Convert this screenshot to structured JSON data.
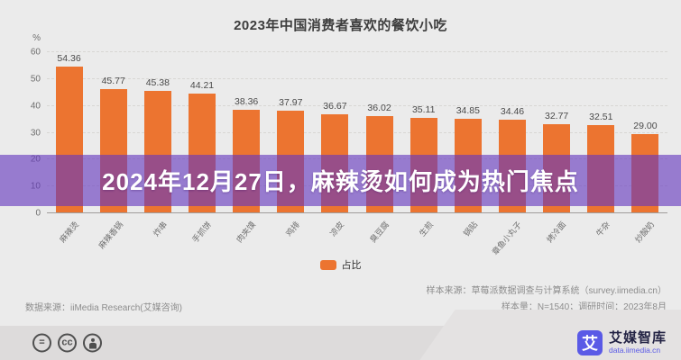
{
  "chart_data": {
    "type": "bar",
    "title": "2023年中国消费者喜欢的餐饮小吃",
    "categories": [
      "麻辣烫",
      "麻辣香锅",
      "炸串",
      "手抓饼",
      "肉夹馍",
      "鸡排",
      "凉皮",
      "臭豆腐",
      "生煎",
      "锅贴",
      "章鱼小丸子",
      "烤冷面",
      "牛杂",
      "炒酸奶"
    ],
    "values": [
      54.36,
      45.77,
      45.38,
      44.21,
      38.36,
      37.97,
      36.67,
      36.02,
      35.11,
      34.85,
      34.46,
      32.77,
      32.51,
      29.0
    ],
    "series_name": "占比",
    "y_unit": "%",
    "ylim": [
      0,
      60
    ],
    "yticks": [
      0,
      10,
      20,
      30,
      40,
      50,
      60
    ],
    "grid": "dashed-horizontal",
    "legend_position": "bottom",
    "bar_color": "#ec7430"
  },
  "banner": {
    "text": "2024年12月27日，麻辣烫如何成为热门焦点",
    "overlay_color": "#6437be"
  },
  "legend": {
    "label": "占比"
  },
  "source": {
    "left": "数据来源：iiMedia Research(艾媒咨询)",
    "right_line1": "样本来源：草莓派数据调查与计算系统（survey.iimedia.cn）",
    "right_line2": "样本量：N=1540；调研时间：2023年8月"
  },
  "footer": {
    "icon_equals": "=",
    "icon_cc": "cc",
    "brand_logo_char": "艾",
    "brand_name": "艾媒智库",
    "brand_url": "data.iimedia.cn",
    "brand_color": "#5a5ae6"
  }
}
